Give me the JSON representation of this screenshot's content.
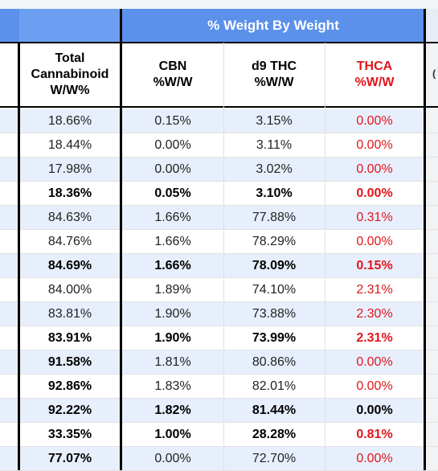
{
  "group_header": "% Weight By Weight",
  "columns": [
    {
      "label": "Total\nCannabinoid\nW/W%",
      "red": false
    },
    {
      "label": "CBN\n%W/W",
      "red": false
    },
    {
      "label": "d9 THC\n%W/W",
      "red": false
    },
    {
      "label": "THCA\n%W/W",
      "red": true
    }
  ],
  "rows": [
    {
      "bold": false,
      "values": [
        "18.66%",
        "0.15%",
        "3.15%",
        "0.00%"
      ]
    },
    {
      "bold": false,
      "values": [
        "18.44%",
        "0.00%",
        "3.11%",
        "0.00%"
      ]
    },
    {
      "bold": false,
      "values": [
        "17.98%",
        "0.00%",
        "3.02%",
        "0.00%"
      ]
    },
    {
      "bold": true,
      "values": [
        "18.36%",
        "0.05%",
        "3.10%",
        "0.00%"
      ]
    },
    {
      "bold": false,
      "values": [
        "84.63%",
        "1.66%",
        "77.88%",
        "0.31%"
      ]
    },
    {
      "bold": false,
      "values": [
        "84.76%",
        "1.66%",
        "78.29%",
        "0.00%"
      ]
    },
    {
      "bold": true,
      "values": [
        "84.69%",
        "1.66%",
        "78.09%",
        "0.15%"
      ]
    },
    {
      "bold": false,
      "values": [
        "84.00%",
        "1.89%",
        "74.10%",
        "2.31%"
      ]
    },
    {
      "bold": false,
      "values": [
        "83.81%",
        "1.90%",
        "73.88%",
        "2.30%"
      ]
    },
    {
      "bold": true,
      "values": [
        "83.91%",
        "1.90%",
        "73.99%",
        "2.31%"
      ]
    },
    {
      "bold": true,
      "values": [
        "91.58%",
        "1.81%",
        "80.86%",
        "0.00%"
      ],
      "mixed": [
        "bold",
        "normal",
        "normal",
        "normal"
      ]
    },
    {
      "bold": true,
      "values": [
        "92.86%",
        "1.83%",
        "82.01%",
        "0.00%"
      ],
      "mixed": [
        "bold",
        "normal",
        "normal",
        "normal"
      ]
    },
    {
      "bold": true,
      "values": [
        "92.22%",
        "1.82%",
        "81.44%",
        "0.00%"
      ],
      "thca_black": true
    },
    {
      "bold": true,
      "values": [
        "33.35%",
        "1.00%",
        "28.28%",
        "0.81%"
      ]
    },
    {
      "bold": true,
      "values": [
        "77.07%",
        "0.00%",
        "72.70%",
        "0.00%"
      ],
      "mixed": [
        "bold",
        "normal",
        "normal",
        "normal"
      ]
    }
  ],
  "colors": {
    "header_blue": "#5b91ea",
    "row_alt": "#e8effc",
    "thca_red": "#e0161b"
  }
}
